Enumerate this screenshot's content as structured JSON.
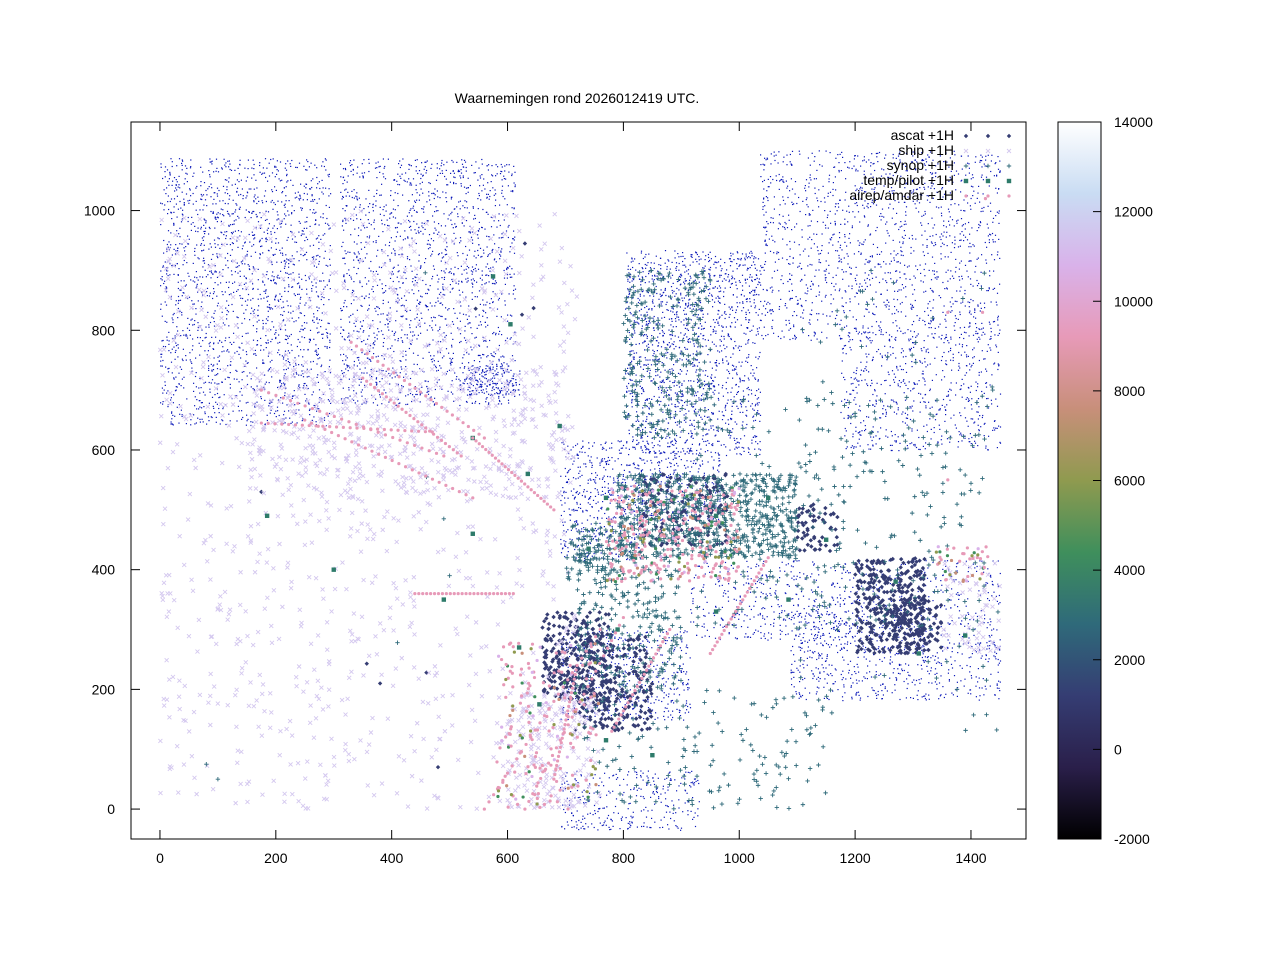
{
  "chart_data": {
    "type": "scatter",
    "title": "Waarnemingen rond 2026012419 UTC.",
    "xlabel": "",
    "ylabel": "",
    "xlim": [
      -50,
      1495
    ],
    "ylim": [
      -50,
      1148
    ],
    "x_ticks": [
      0,
      200,
      400,
      600,
      800,
      1000,
      1200,
      1400
    ],
    "y_ticks": [
      0,
      200,
      400,
      600,
      800,
      1000
    ],
    "grid": false,
    "legend_position": "top-right",
    "colorbar": {
      "range": [
        -2000,
        14000
      ],
      "ticks": [
        -2000,
        0,
        2000,
        4000,
        6000,
        8000,
        10000,
        12000,
        14000
      ],
      "stops": [
        "#000000",
        "#2a1f4a",
        "#353d73",
        "#2f6a7a",
        "#3f8f5c",
        "#8f9a4f",
        "#c88f7a",
        "#e79ab8",
        "#d9b2ea",
        "#c9dcf3",
        "#ffffff"
      ]
    },
    "series": [
      {
        "name": "ascat +1H",
        "marker": "diamond",
        "color": "#353d73",
        "clusters": [
          {
            "x": [
              660,
              780
            ],
            "y": [
              180,
              330
            ],
            "n": 260
          },
          {
            "x": [
              715,
              850
            ],
            "y": [
              130,
              290
            ],
            "n": 220
          },
          {
            "x": [
              1200,
              1320
            ],
            "y": [
              260,
              420
            ],
            "n": 320
          },
          {
            "x": [
              1265,
              1350
            ],
            "y": [
              260,
              350
            ],
            "n": 120
          },
          {
            "x": [
              830,
              980
            ],
            "y": [
              440,
              560
            ],
            "n": 160
          },
          {
            "x": [
              1100,
              1170
            ],
            "y": [
              430,
              510
            ],
            "n": 60
          }
        ],
        "points": [
          [
            630,
            945
          ],
          [
            625,
            826
          ],
          [
            645,
            837
          ],
          [
            545,
            836
          ],
          [
            175,
            530
          ],
          [
            357,
            243
          ],
          [
            460,
            228
          ],
          [
            380,
            210
          ],
          [
            480,
            70
          ]
        ]
      },
      {
        "name": "ship +1H",
        "marker": "cross",
        "color": "#d4c8ef",
        "clusters": [
          {
            "x": [
              0,
              720
            ],
            "y": [
              0,
              1000
            ],
            "n": 900
          },
          {
            "x": [
              150,
              700
            ],
            "y": [
              520,
              740
            ],
            "n": 420
          },
          {
            "x": [
              600,
              760
            ],
            "y": [
              0,
              200
            ],
            "n": 180
          },
          {
            "x": [
              1350,
              1450
            ],
            "y": [
              260,
              420
            ],
            "n": 60
          }
        ],
        "points": []
      },
      {
        "name": "synop +1H",
        "marker": "plus",
        "color": "#2f6a7a",
        "clusters": [
          {
            "x": [
              790,
              1100
            ],
            "y": [
              420,
              560
            ],
            "n": 700
          },
          {
            "x": [
              720,
              900
            ],
            "y": [
              200,
              470
            ],
            "n": 300
          },
          {
            "x": [
              800,
              950
            ],
            "y": [
              620,
              900
            ],
            "n": 260
          },
          {
            "x": [
              900,
              1430
            ],
            "y": [
              300,
              700
            ],
            "n": 260
          },
          {
            "x": [
              1100,
              1450
            ],
            "y": [
              100,
              900
            ],
            "n": 90
          },
          {
            "x": [
              730,
              1160
            ],
            "y": [
              0,
              200
            ],
            "n": 150
          },
          {
            "x": [
              700,
              800
            ],
            "y": [
              380,
              480
            ],
            "n": 90
          }
        ],
        "points": [
          [
            458,
            896
          ],
          [
            490,
            485
          ],
          [
            460,
            555
          ],
          [
            80,
            75
          ],
          [
            100,
            50
          ],
          [
            410,
            278
          ],
          [
            500,
            390
          ]
        ]
      },
      {
        "name": "temp/pilot +1H",
        "marker": "square",
        "color": "#2e7b6a",
        "clusters": [],
        "points": [
          [
            575,
            890
          ],
          [
            605,
            810
          ],
          [
            540,
            620
          ],
          [
            635,
            560
          ],
          [
            690,
            640
          ],
          [
            770,
            520
          ],
          [
            858,
            515
          ],
          [
            960,
            490
          ],
          [
            1050,
            520
          ],
          [
            740,
            435
          ],
          [
            820,
            420
          ],
          [
            960,
            330
          ],
          [
            1085,
            350
          ],
          [
            1150,
            450
          ],
          [
            1270,
            380
          ],
          [
            1310,
            260
          ],
          [
            1390,
            290
          ],
          [
            620,
            270
          ],
          [
            790,
            300
          ],
          [
            655,
            175
          ],
          [
            770,
            115
          ],
          [
            850,
            90
          ],
          [
            490,
            350
          ],
          [
            300,
            400
          ],
          [
            185,
            490
          ],
          [
            540,
            460
          ]
        ]
      },
      {
        "name": "airep/amdar +1H",
        "marker": "dot",
        "color": "#e79ab8",
        "clusters": [
          {
            "x": [
              770,
              1000
            ],
            "y": [
              380,
              540
            ],
            "n": 320
          },
          {
            "x": [
              580,
              760
            ],
            "y": [
              0,
              280
            ],
            "n": 180
          },
          {
            "x": [
              1340,
              1430
            ],
            "y": [
              380,
              440
            ],
            "n": 40
          }
        ],
        "lines": [
          {
            "from": [
              175,
              645
            ],
            "to": [
              470,
              630
            ]
          },
          {
            "from": [
              175,
              700
            ],
            "to": [
              490,
              590
            ]
          },
          {
            "from": [
              330,
              780
            ],
            "to": [
              560,
              620
            ]
          },
          {
            "from": [
              250,
              650
            ],
            "to": [
              540,
              520
            ]
          },
          {
            "from": [
              350,
              720
            ],
            "to": [
              520,
              590
            ]
          },
          {
            "from": [
              540,
              620
            ],
            "to": [
              680,
              500
            ]
          },
          {
            "from": [
              440,
              360
            ],
            "to": [
              610,
              360
            ]
          },
          {
            "from": [
              560,
              0
            ],
            "to": [
              760,
              300
            ]
          },
          {
            "from": [
              630,
              0
            ],
            "to": [
              800,
              320
            ]
          },
          {
            "from": [
              680,
              50
            ],
            "to": [
              720,
              240
            ]
          },
          {
            "from": [
              780,
              130
            ],
            "to": [
              880,
              300
            ]
          },
          {
            "from": [
              950,
              260
            ],
            "to": [
              1050,
              420
            ]
          }
        ],
        "points": [
          [
            1425,
            1020
          ],
          [
            1420,
            830
          ],
          [
            1360,
            830
          ],
          [
            1360,
            550
          ]
        ]
      }
    ]
  }
}
